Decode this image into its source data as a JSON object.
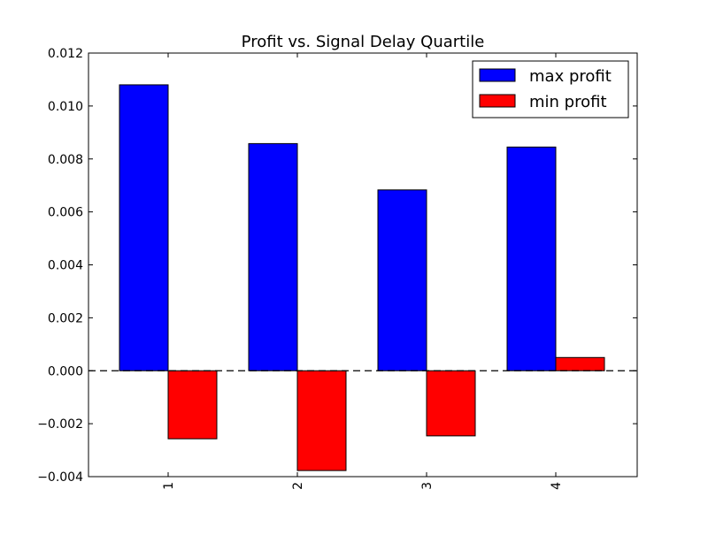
{
  "chart_data": {
    "type": "bar",
    "title": "Profit vs. Signal Delay Quartile",
    "xlabel": "",
    "ylabel": "",
    "categories": [
      "1",
      "2",
      "3",
      "4"
    ],
    "series": [
      {
        "name": "max profit",
        "color": "#0000ff",
        "values": [
          0.0108,
          0.00858,
          0.00683,
          0.00845
        ]
      },
      {
        "name": "min profit",
        "color": "#ff0000",
        "values": [
          -0.00257,
          -0.00377,
          -0.00246,
          0.0005
        ]
      }
    ],
    "ylim": [
      -0.004,
      0.012
    ],
    "yticks": [
      "0.012",
      "0.010",
      "0.008",
      "0.006",
      "0.004",
      "0.002",
      "0.000",
      "−0.002",
      "−0.004"
    ],
    "ytick_values": [
      0.012,
      0.01,
      0.008,
      0.006,
      0.004,
      0.002,
      0.0,
      -0.002,
      -0.004
    ],
    "reference_line": {
      "y": 0,
      "style": "dashed"
    },
    "legend_position": "top-right",
    "xtick_rotation": "vertical",
    "grid": false
  }
}
